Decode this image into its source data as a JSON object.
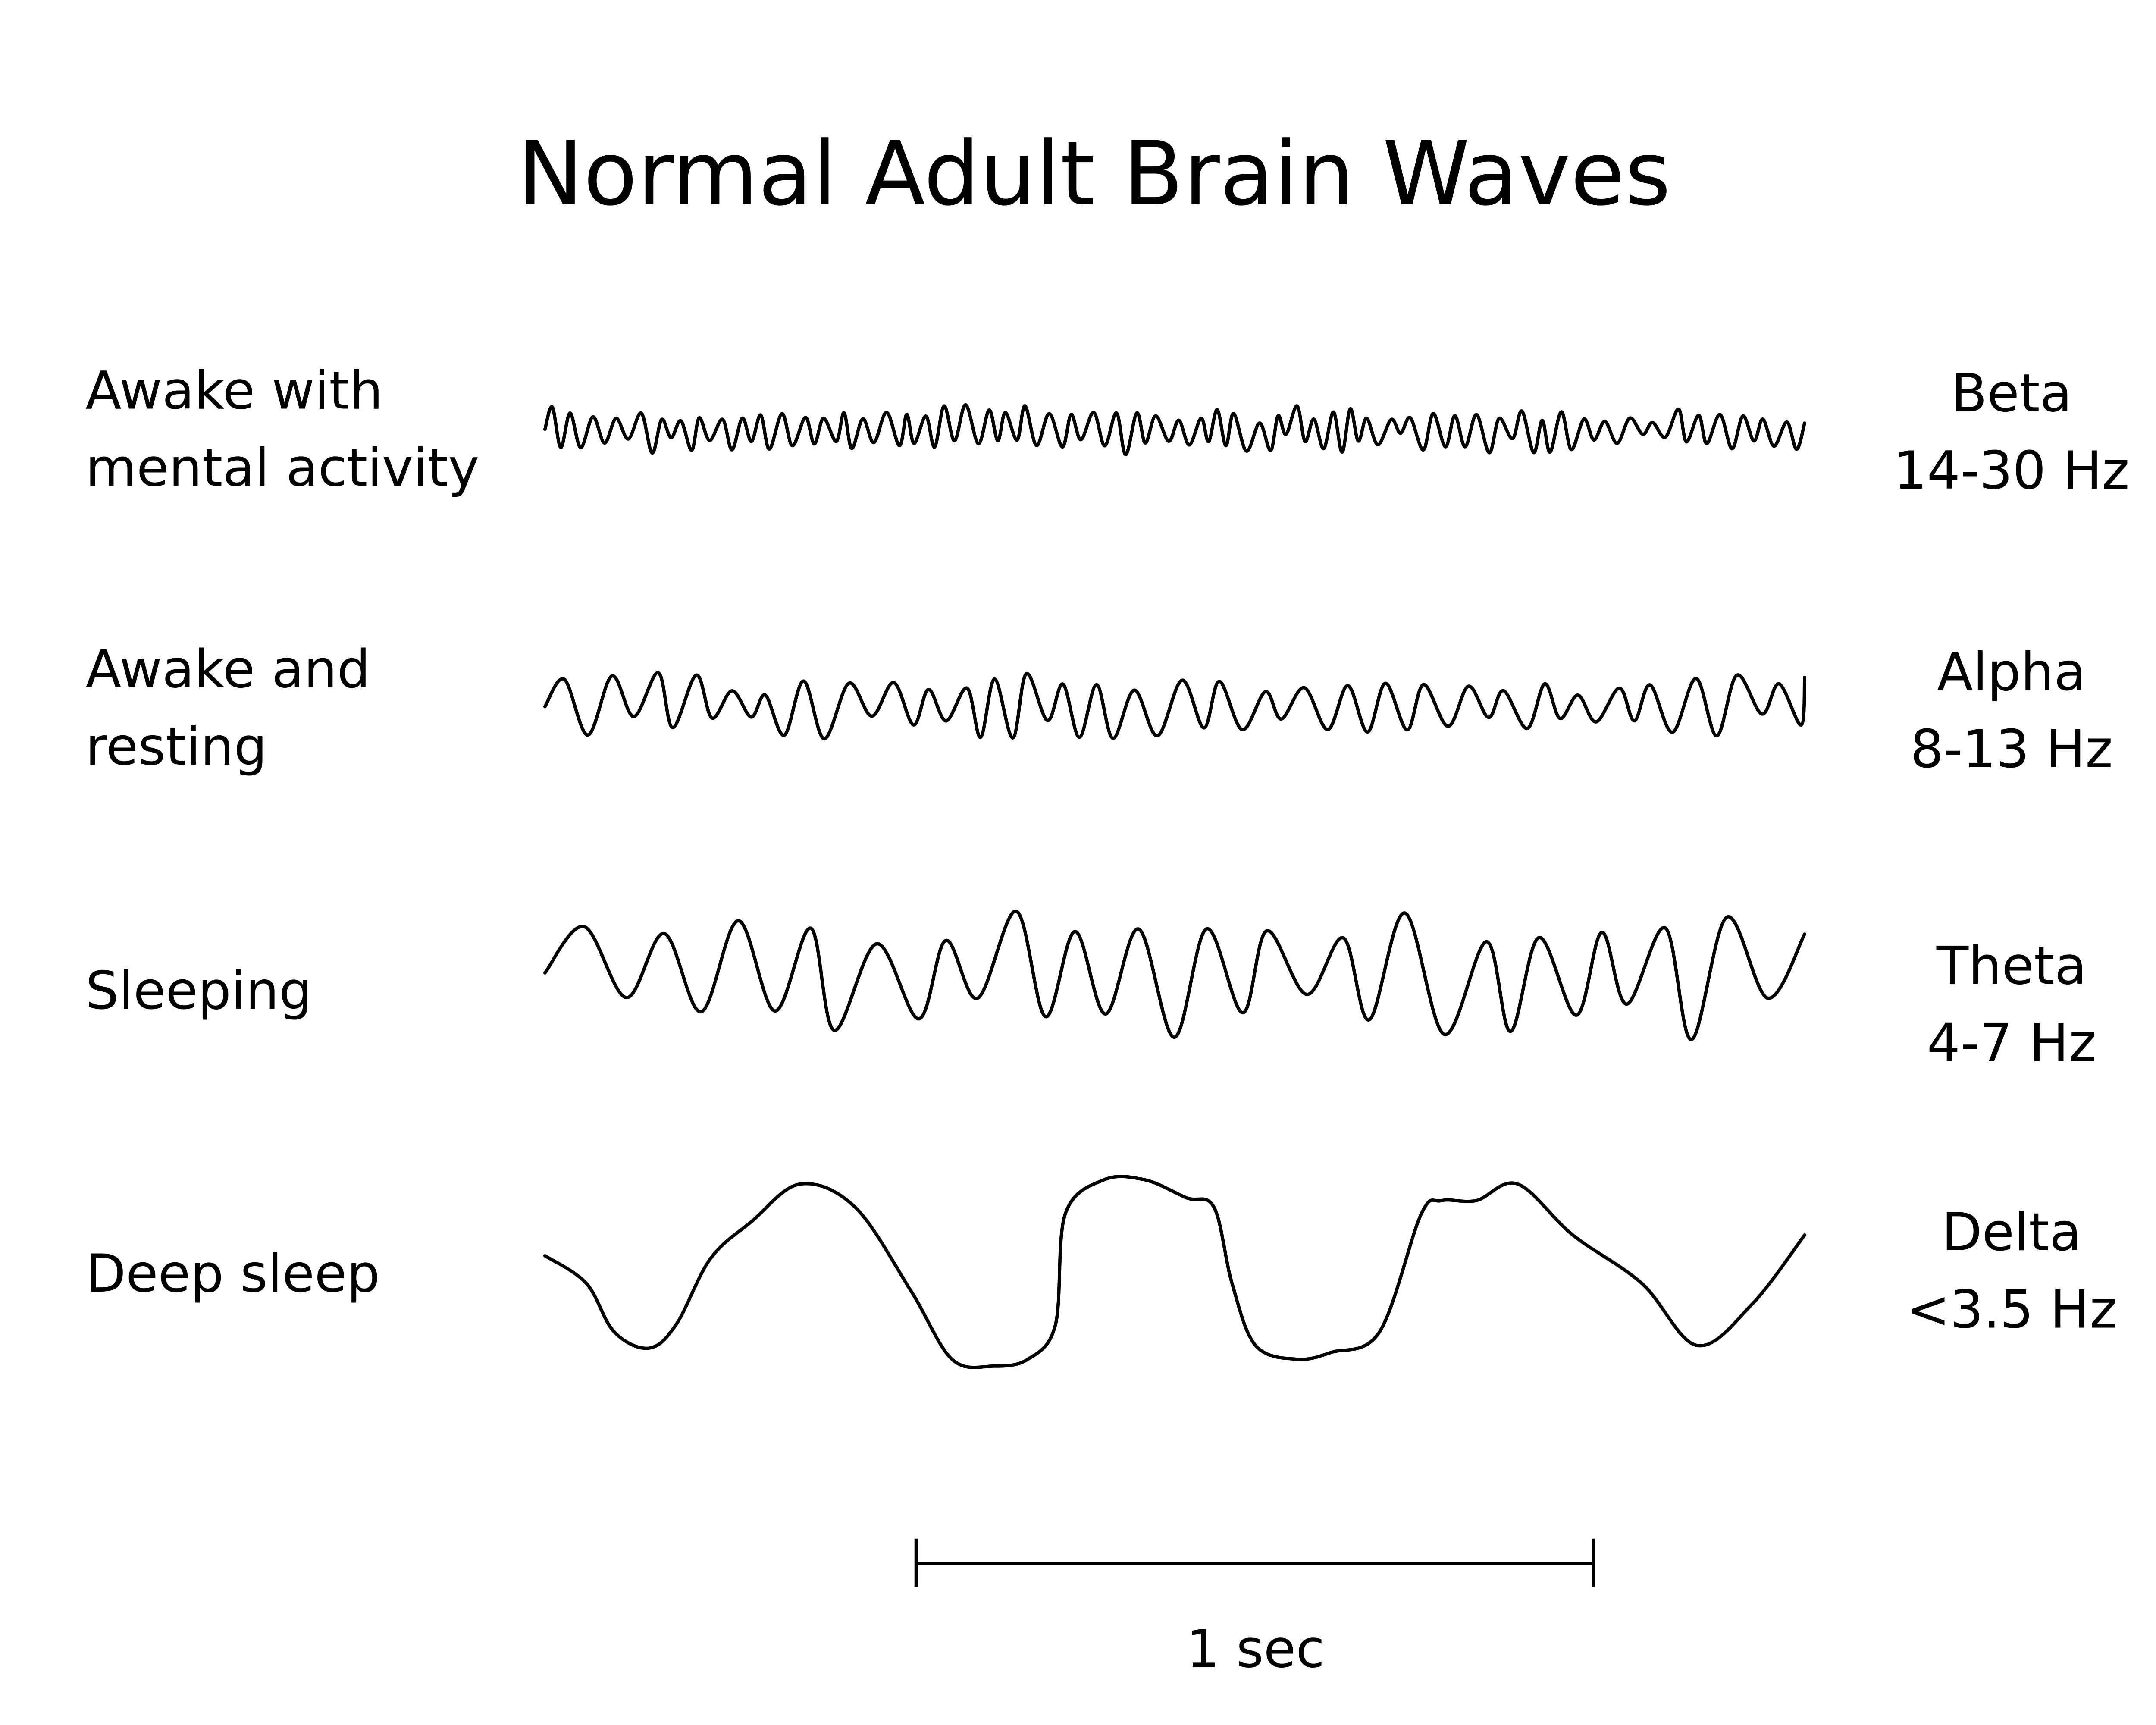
{
  "title": "Normal Adult Brain Waves",
  "rows": [
    {
      "state_lines": [
        "Awake with",
        "mental activity"
      ],
      "band": "Beta",
      "range": "14-30 Hz"
    },
    {
      "state_lines": [
        "Awake and",
        "resting"
      ],
      "band": "Alpha",
      "range": "8-13 Hz"
    },
    {
      "state_lines": [
        "Sleeping"
      ],
      "band": "Theta",
      "range": "4-7 Hz"
    },
    {
      "state_lines": [
        "Deep sleep"
      ],
      "band": "Delta",
      "range": "<3.5 Hz"
    }
  ],
  "scale_bar": {
    "label": "1 sec"
  },
  "colors": {
    "line": "#000000",
    "background": "#ffffff"
  }
}
